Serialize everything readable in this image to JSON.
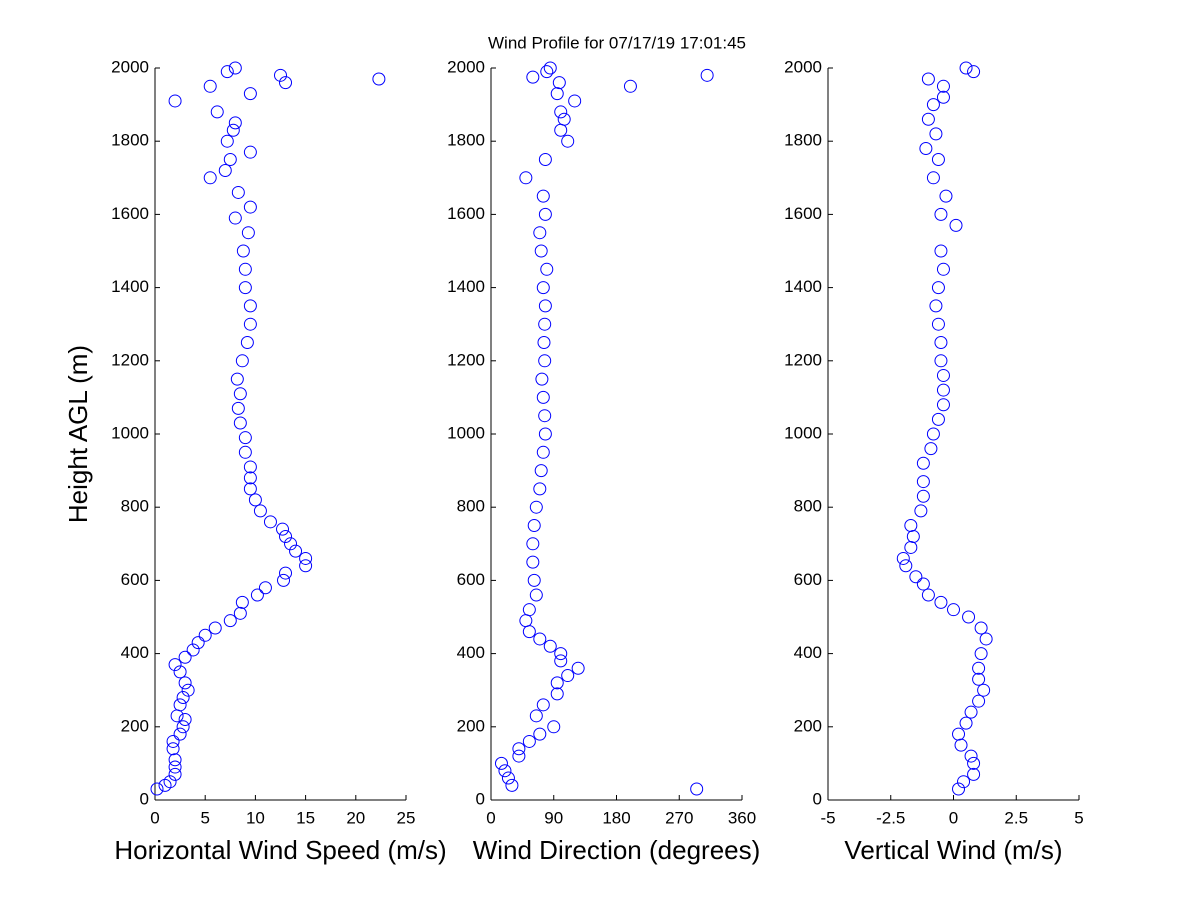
{
  "chart_data": [
    {
      "type": "scatter",
      "xlabel": "Horizontal Wind Speed (m/s)",
      "ylabel": "Height AGL (m)",
      "color": "#0000ff",
      "xlim": [
        0,
        25
      ],
      "xticks": [
        0,
        5,
        10,
        15,
        20,
        25
      ],
      "ylim": [
        0,
        2000
      ],
      "yticks": [
        0,
        200,
        400,
        600,
        800,
        1000,
        1200,
        1400,
        1600,
        1800,
        2000
      ],
      "x": [
        0.2,
        1,
        1.5,
        2,
        2,
        2,
        1.8,
        1.8,
        2.5,
        2.8,
        3,
        2.2,
        2.5,
        2.8,
        3.3,
        3,
        2.5,
        2,
        3,
        3.8,
        4.3,
        5,
        6,
        7.5,
        8.5,
        8.7,
        10.2,
        11,
        12.8,
        13,
        15,
        15,
        14,
        13.5,
        13,
        12.7,
        11.5,
        10.5,
        10,
        9.5,
        9.5,
        9.5,
        9,
        9,
        8.5,
        8.3,
        8.5,
        8.2,
        8.7,
        9.2,
        9.5,
        9.5,
        9,
        9,
        8.8,
        9.3,
        8,
        9.5,
        8.3,
        5.5,
        7,
        7.5,
        9.5,
        7.2,
        7.8,
        8,
        6.2,
        2,
        9.5,
        5.5,
        13,
        22.3,
        12.5,
        7.2,
        8
      ],
      "y": [
        30,
        40,
        50,
        70,
        90,
        110,
        140,
        160,
        180,
        200,
        220,
        230,
        260,
        280,
        300,
        320,
        350,
        370,
        390,
        410,
        430,
        450,
        470,
        490,
        510,
        540,
        560,
        580,
        600,
        620,
        640,
        660,
        680,
        700,
        720,
        740,
        760,
        790,
        820,
        850,
        880,
        910,
        950,
        990,
        1030,
        1070,
        1110,
        1150,
        1200,
        1250,
        1300,
        1350,
        1400,
        1450,
        1500,
        1550,
        1590,
        1620,
        1660,
        1700,
        1720,
        1750,
        1770,
        1800,
        1830,
        1850,
        1880,
        1910,
        1930,
        1950,
        1960,
        1970,
        1980,
        1990,
        2000
      ]
    },
    {
      "type": "scatter",
      "title": "Wind Profile for  07/17/19 17:01:45",
      "xlabel": "Wind Direction (degrees)",
      "color": "#0000ff",
      "xlim": [
        0,
        360
      ],
      "xticks": [
        0,
        90,
        180,
        270,
        360
      ],
      "ylim": [
        0,
        2000
      ],
      "yticks": [
        0,
        200,
        400,
        600,
        800,
        1000,
        1200,
        1400,
        1600,
        1800,
        2000
      ],
      "x": [
        295,
        30,
        25,
        20,
        15,
        40,
        40,
        55,
        70,
        90,
        65,
        75,
        95,
        95,
        110,
        125,
        100,
        100,
        85,
        70,
        55,
        50,
        55,
        65,
        62,
        60,
        60,
        62,
        65,
        70,
        72,
        75,
        78,
        77,
        75,
        73,
        77,
        76,
        77,
        78,
        75,
        80,
        72,
        70,
        78,
        75,
        50,
        78,
        110,
        100,
        105,
        100,
        120,
        95,
        200,
        98,
        60,
        310,
        80,
        85
      ],
      "y": [
        30,
        40,
        60,
        80,
        100,
        120,
        140,
        160,
        180,
        200,
        230,
        260,
        290,
        320,
        340,
        360,
        380,
        400,
        420,
        440,
        460,
        490,
        520,
        560,
        600,
        650,
        700,
        750,
        800,
        850,
        900,
        950,
        1000,
        1050,
        1100,
        1150,
        1200,
        1250,
        1300,
        1350,
        1400,
        1450,
        1500,
        1550,
        1600,
        1650,
        1700,
        1750,
        1800,
        1830,
        1860,
        1880,
        1910,
        1930,
        1950,
        1960,
        1975,
        1980,
        1990,
        2000
      ]
    },
    {
      "type": "scatter",
      "xlabel": "Vertical Wind (m/s)",
      "color": "#0000ff",
      "xlim": [
        -5,
        5
      ],
      "xticks": [
        -5,
        -2.5,
        0,
        2.5,
        5
      ],
      "ylim": [
        0,
        2000
      ],
      "yticks": [
        0,
        200,
        400,
        600,
        800,
        1000,
        1200,
        1400,
        1600,
        1800,
        2000
      ],
      "x": [
        0.2,
        0.4,
        0.8,
        0.8,
        0.7,
        0.3,
        0.2,
        0.5,
        0.7,
        1,
        1.2,
        1,
        1,
        1.1,
        1.3,
        1.1,
        0.6,
        0,
        -0.5,
        -1,
        -1.2,
        -1.5,
        -1.9,
        -2,
        -1.7,
        -1.6,
        -1.7,
        -1.3,
        -1.2,
        -1.2,
        -1.2,
        -0.9,
        -0.8,
        -0.6,
        -0.4,
        -0.4,
        -0.4,
        -0.5,
        -0.5,
        -0.6,
        -0.7,
        -0.6,
        -0.4,
        -0.5,
        0.1,
        -0.5,
        -0.3,
        -0.8,
        -0.6,
        -1.1,
        -0.7,
        -1,
        -0.8,
        -0.4,
        -0.4,
        -1,
        0.8,
        0.5
      ],
      "y": [
        30,
        50,
        70,
        100,
        120,
        150,
        180,
        210,
        240,
        270,
        300,
        330,
        360,
        400,
        440,
        470,
        500,
        520,
        540,
        560,
        590,
        610,
        640,
        660,
        690,
        720,
        750,
        790,
        830,
        870,
        920,
        960,
        1000,
        1040,
        1080,
        1120,
        1160,
        1200,
        1250,
        1300,
        1350,
        1400,
        1450,
        1500,
        1570,
        1600,
        1650,
        1700,
        1750,
        1780,
        1820,
        1860,
        1900,
        1920,
        1950,
        1970,
        1990,
        2000
      ]
    }
  ]
}
